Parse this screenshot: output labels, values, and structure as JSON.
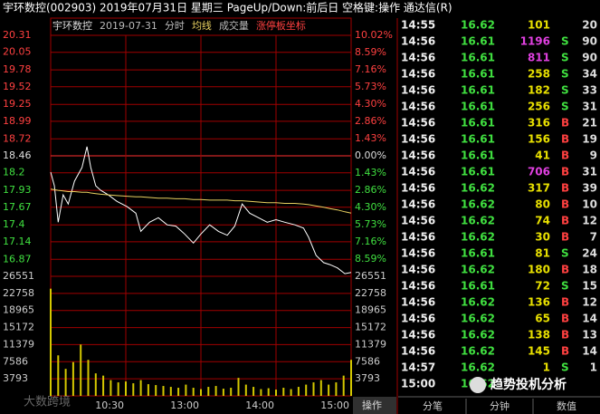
{
  "window": {
    "title": "宇环数控(002903)  2019年07月31日 星期三  PageUp/Down:前后日  空格键:操作  通达信(R)"
  },
  "chart_data": {
    "type": "line",
    "stock": "宇环数控",
    "date": "2019-07-31",
    "x": [
      0,
      3,
      6,
      10,
      14,
      19,
      25,
      29,
      32,
      36,
      40,
      46,
      53,
      61,
      68,
      72,
      79,
      86,
      93,
      100,
      107,
      114,
      120,
      127,
      134,
      141,
      147,
      153,
      159,
      166,
      173,
      180,
      187,
      195,
      202,
      206,
      212,
      218,
      223,
      229,
      235,
      240
    ],
    "series": [
      {
        "name": "分时",
        "color": "#ffffff",
        "values": [
          18.21,
          18.0,
          17.44,
          17.86,
          17.72,
          18.07,
          18.28,
          18.6,
          18.28,
          18.0,
          17.93,
          17.86,
          17.76,
          17.68,
          17.58,
          17.3,
          17.44,
          17.51,
          17.4,
          17.38,
          17.26,
          17.12,
          17.26,
          17.4,
          17.3,
          17.24,
          17.38,
          17.72,
          17.58,
          17.51,
          17.44,
          17.48,
          17.44,
          17.4,
          17.35,
          17.21,
          16.93,
          16.82,
          16.79,
          16.74,
          16.65,
          16.67
        ]
      },
      {
        "name": "均线",
        "color": "#e8d060",
        "values": [
          17.95,
          17.94,
          17.93,
          17.92,
          17.91,
          17.91,
          17.9,
          17.9,
          17.89,
          17.88,
          17.87,
          17.86,
          17.85,
          17.84,
          17.83,
          17.83,
          17.82,
          17.81,
          17.81,
          17.8,
          17.8,
          17.79,
          17.79,
          17.78,
          17.78,
          17.78,
          17.77,
          17.77,
          17.76,
          17.75,
          17.74,
          17.74,
          17.73,
          17.73,
          17.72,
          17.71,
          17.69,
          17.67,
          17.65,
          17.63,
          17.6,
          17.58
        ]
      }
    ],
    "xlim": [
      0,
      240
    ],
    "xticks": [
      {
        "value": 60,
        "label": "10:30"
      },
      {
        "value": 120,
        "label": "13:00"
      },
      {
        "value": 180,
        "label": "14:00"
      },
      {
        "value": 240,
        "label": "15:00"
      }
    ],
    "ylim": [
      16.61,
      20.31
    ],
    "yticks": [
      20.31,
      20.05,
      19.78,
      19.52,
      19.25,
      18.99,
      18.72,
      18.46,
      18.2,
      17.93,
      17.67,
      17.4,
      17.14,
      16.87
    ],
    "y2lim": [
      -10.02,
      10.02
    ],
    "y2ticks": [
      {
        "value": 10.02,
        "label": "10.02%"
      },
      {
        "value": 8.59,
        "label": "8.59%"
      },
      {
        "value": 7.16,
        "label": "7.16%"
      },
      {
        "value": 5.73,
        "label": "5.73%"
      },
      {
        "value": 4.3,
        "label": "4.30%"
      },
      {
        "value": 2.86,
        "label": "2.86%"
      },
      {
        "value": 1.43,
        "label": "1.43%"
      },
      {
        "value": 0,
        "label": "0.00%"
      },
      {
        "value": -1.43,
        "label": "1.43%"
      },
      {
        "value": -2.86,
        "label": "2.86%"
      },
      {
        "value": -4.3,
        "label": "4.30%"
      },
      {
        "value": -5.73,
        "label": "5.73%"
      },
      {
        "value": -7.16,
        "label": "7.16%"
      },
      {
        "value": -8.59,
        "label": "8.59%"
      }
    ],
    "volume": {
      "name": "成交量",
      "color": "#d4c800",
      "lim": [
        0,
        26551
      ],
      "ticks": [
        26551,
        22758,
        18965,
        15172,
        11379,
        7586,
        3793
      ],
      "x": [
        0,
        6,
        12,
        18,
        24,
        30,
        36,
        42,
        48,
        54,
        60,
        66,
        72,
        78,
        84,
        90,
        96,
        102,
        108,
        114,
        120,
        126,
        132,
        138,
        144,
        150,
        156,
        162,
        168,
        174,
        180,
        186,
        192,
        198,
        204,
        210,
        216,
        222,
        228,
        234,
        240
      ],
      "values": [
        23800,
        9000,
        6000,
        7500,
        11400,
        8000,
        5000,
        4500,
        3500,
        3000,
        3200,
        2800,
        3500,
        2600,
        2400,
        2200,
        2000,
        1800,
        2500,
        1800,
        1500,
        2000,
        2200,
        1600,
        1800,
        4000,
        2500,
        2000,
        1500,
        1700,
        1400,
        1800,
        1500,
        2000,
        2500,
        3000,
        3500,
        2500,
        3000,
        4500,
        8000
      ]
    },
    "limit_label": "涨停板坐标",
    "grid": true
  },
  "table": {
    "rows": [
      {
        "time": "14:55",
        "price": "16.62",
        "vol": "101",
        "count": "20"
      },
      {
        "time": "14:56",
        "price": "16.61",
        "vol": "1196",
        "vol_color": "#e040e0",
        "flag": "S",
        "count": "90"
      },
      {
        "time": "14:56",
        "price": "16.61",
        "vol": "811",
        "vol_color": "#e040e0",
        "flag": "S",
        "count": "90"
      },
      {
        "time": "14:56",
        "price": "16.61",
        "vol": "258",
        "flag": "S",
        "count": "34"
      },
      {
        "time": "14:56",
        "price": "16.61",
        "vol": "182",
        "flag": "S",
        "count": "33"
      },
      {
        "time": "14:56",
        "price": "16.61",
        "vol": "256",
        "flag": "S",
        "count": "31"
      },
      {
        "time": "14:56",
        "price": "16.61",
        "vol": "316",
        "flag": "B",
        "count": "21"
      },
      {
        "time": "14:56",
        "price": "16.61",
        "vol": "156",
        "flag": "B",
        "count": "19"
      },
      {
        "time": "14:56",
        "price": "16.61",
        "vol": "41",
        "flag": "B",
        "count": "9"
      },
      {
        "time": "14:56",
        "price": "16.61",
        "vol": "706",
        "vol_color": "#e040e0",
        "flag": "B",
        "count": "31"
      },
      {
        "time": "14:56",
        "price": "16.62",
        "vol": "317",
        "flag": "B",
        "count": "39"
      },
      {
        "time": "14:56",
        "price": "16.62",
        "vol": "80",
        "flag": "B",
        "count": "10"
      },
      {
        "time": "14:56",
        "price": "16.62",
        "vol": "74",
        "flag": "B",
        "count": "12"
      },
      {
        "time": "14:56",
        "price": "16.62",
        "vol": "30",
        "flag": "B",
        "count": "7"
      },
      {
        "time": "14:56",
        "price": "16.61",
        "vol": "81",
        "flag": "S",
        "count": "24"
      },
      {
        "time": "14:56",
        "price": "16.62",
        "vol": "180",
        "flag": "B",
        "count": "18"
      },
      {
        "time": "14:56",
        "price": "16.61",
        "vol": "72",
        "flag": "S",
        "count": "15"
      },
      {
        "time": "14:56",
        "price": "16.62",
        "vol": "136",
        "flag": "B",
        "count": "12"
      },
      {
        "time": "14:56",
        "price": "16.62",
        "vol": "65",
        "flag": "B",
        "count": "14"
      },
      {
        "time": "14:56",
        "price": "16.62",
        "vol": "138",
        "flag": "B",
        "count": "13"
      },
      {
        "time": "14:56",
        "price": "16.62",
        "vol": "145",
        "flag": "B",
        "count": "14"
      },
      {
        "time": "14:57",
        "price": "16.62",
        "vol": "1",
        "flag": "S",
        "count": "1"
      },
      {
        "time": "15:00",
        "price": "16.62"
      }
    ]
  },
  "operate": "操作",
  "tabs": [
    "分笔",
    "分钟",
    "数值"
  ],
  "watermarks": [
    "大数跨境",
    "趋势投机分析"
  ]
}
